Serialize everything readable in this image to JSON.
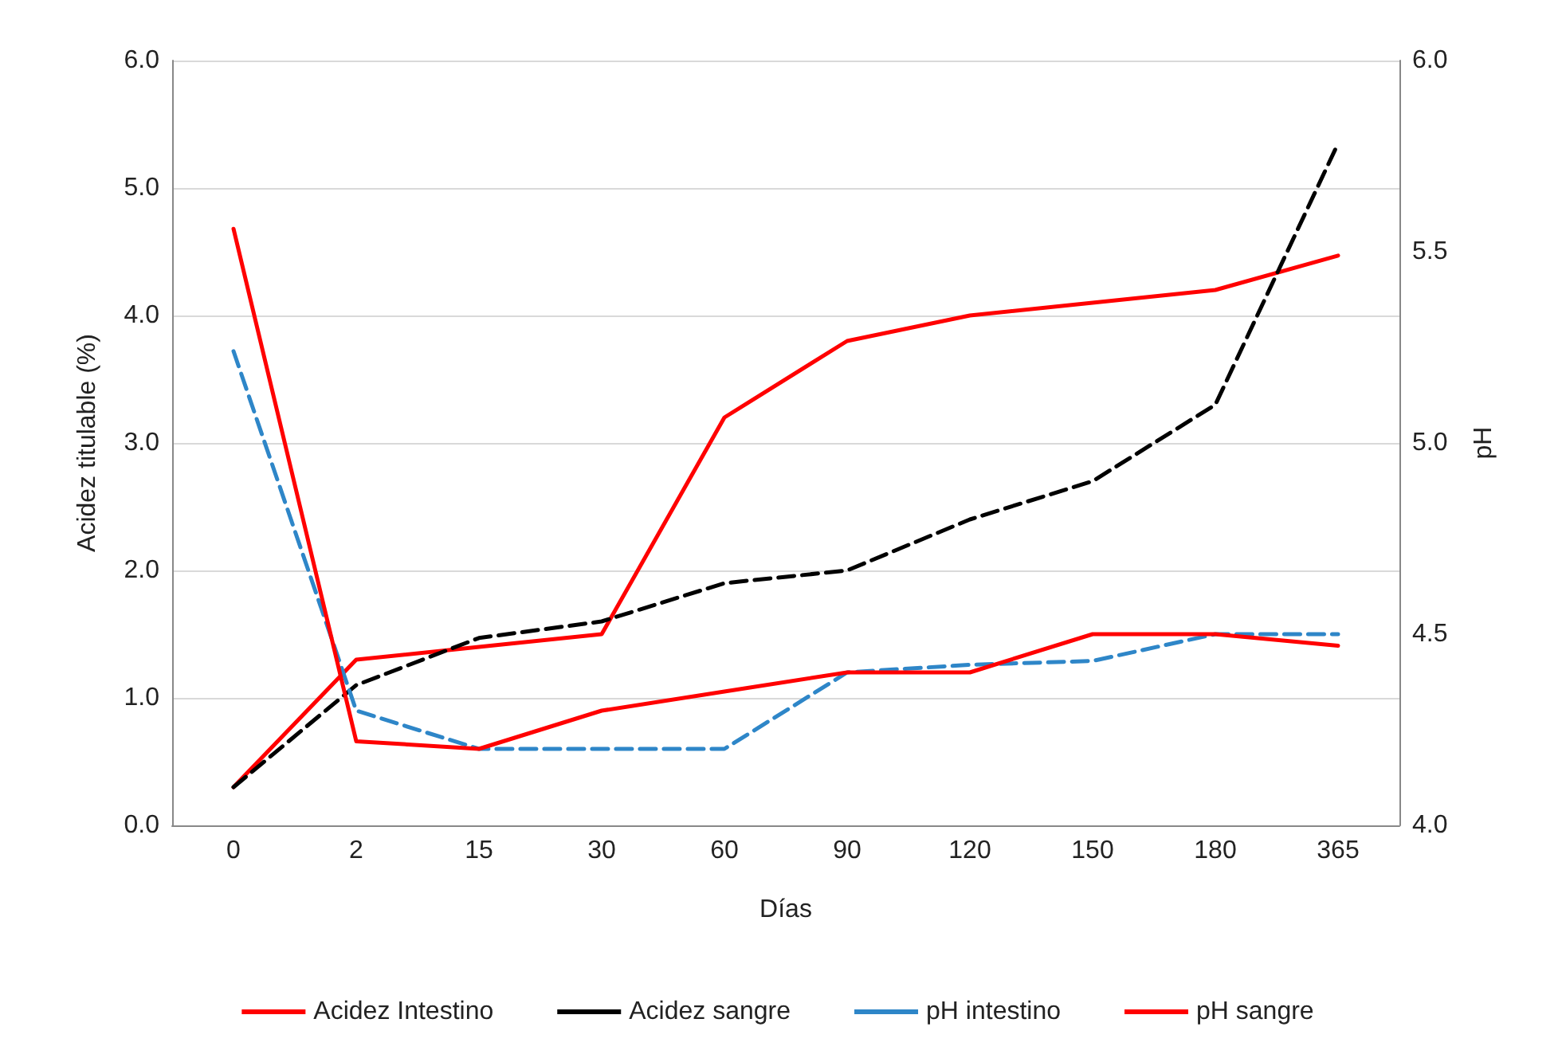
{
  "chart_data": {
    "type": "line",
    "xlabel": "Días",
    "ylabel": "Acidez titulable (%)",
    "y2label": "pH",
    "categories": [
      "0",
      "2",
      "15",
      "30",
      "60",
      "90",
      "120",
      "150",
      "180",
      "365"
    ],
    "series": [
      {
        "name": "Acidez Intestino",
        "color": "#ff0000",
        "line_style": "solid",
        "values": [
          0.3,
          1.3,
          1.4,
          1.5,
          3.2,
          3.8,
          4.0,
          4.1,
          4.2,
          4.47
        ]
      },
      {
        "name": "Acidez sangre",
        "color": "#000000",
        "line_style": "dashed",
        "values": [
          0.3,
          1.1,
          1.47,
          1.6,
          1.9,
          2.0,
          2.4,
          2.7,
          3.3,
          5.35
        ]
      },
      {
        "name": "pH intestino",
        "color": "#2e86c8",
        "line_style": "dashed",
        "axis": "y2",
        "values": [
          5.24,
          4.3,
          4.2,
          4.2,
          4.2,
          4.4,
          4.42,
          4.43,
          4.5,
          4.5
        ]
      },
      {
        "name": "pH sangre",
        "color": "#ff0000",
        "line_style": "solid",
        "axis": "y2",
        "values": [
          5.56,
          4.22,
          4.2,
          4.3,
          4.35,
          4.4,
          4.4,
          4.5,
          4.5,
          4.47
        ]
      }
    ],
    "ylim": [
      0,
      6
    ],
    "yticks": [
      {
        "value": 0,
        "label": "0.0"
      },
      {
        "value": 1,
        "label": "1.0"
      },
      {
        "value": 2,
        "label": "2.0"
      },
      {
        "value": 3,
        "label": "3.0"
      },
      {
        "value": 4,
        "label": "4.0"
      },
      {
        "value": 5,
        "label": "5.0"
      },
      {
        "value": 6,
        "label": "6.0"
      }
    ],
    "y2lim": [
      4,
      6
    ],
    "y2ticks": [
      {
        "value": 4,
        "label": "4.0"
      },
      {
        "value": 4.5,
        "label": "4.5"
      },
      {
        "value": 5,
        "label": "5.0"
      },
      {
        "value": 5.5,
        "label": "5.5"
      },
      {
        "value": 6,
        "label": "6.0"
      }
    ],
    "grid": "y",
    "legend": "bottom",
    "marker": "none"
  }
}
